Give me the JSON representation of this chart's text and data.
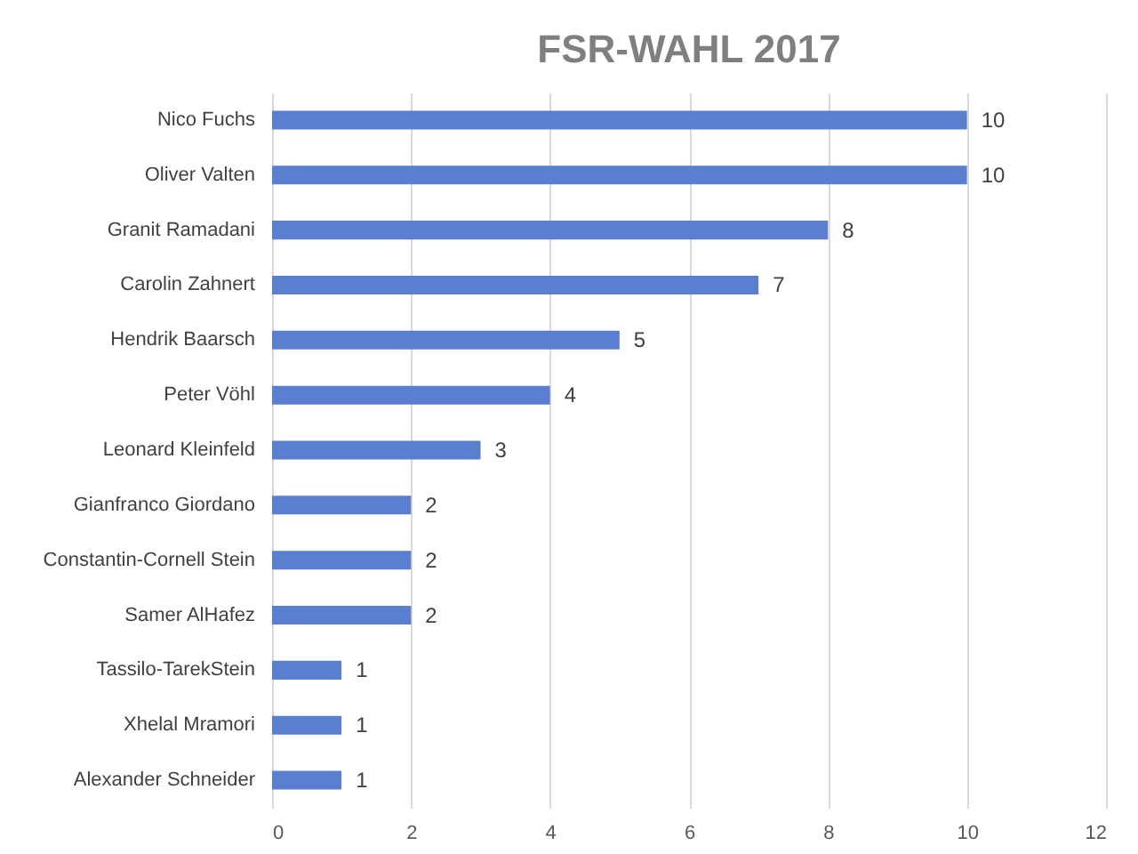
{
  "chart_data": {
    "type": "bar",
    "title": "FSR-WAHL 2017",
    "orientation": "horizontal",
    "categories": [
      "Nico Fuchs",
      "Oliver Valten",
      "Granit Ramadani",
      "Carolin Zahnert",
      "Hendrik Baarsch",
      "Peter Vöhl",
      "Leonard Kleinfeld",
      "Gianfranco Giordano",
      "Constantin-Cornell Stein",
      "Samer AlHafez",
      "Tassilo-TarekStein",
      "Xhelal Mramori",
      "Alexander Schneider"
    ],
    "values": [
      10,
      10,
      8,
      7,
      5,
      4,
      3,
      2,
      2,
      2,
      1,
      1,
      1
    ],
    "color": "#5b7fd0",
    "xlim": [
      0,
      12
    ],
    "xticks": [
      0,
      2,
      4,
      6,
      8,
      10,
      12
    ],
    "grid": "x",
    "data_labels": true
  }
}
